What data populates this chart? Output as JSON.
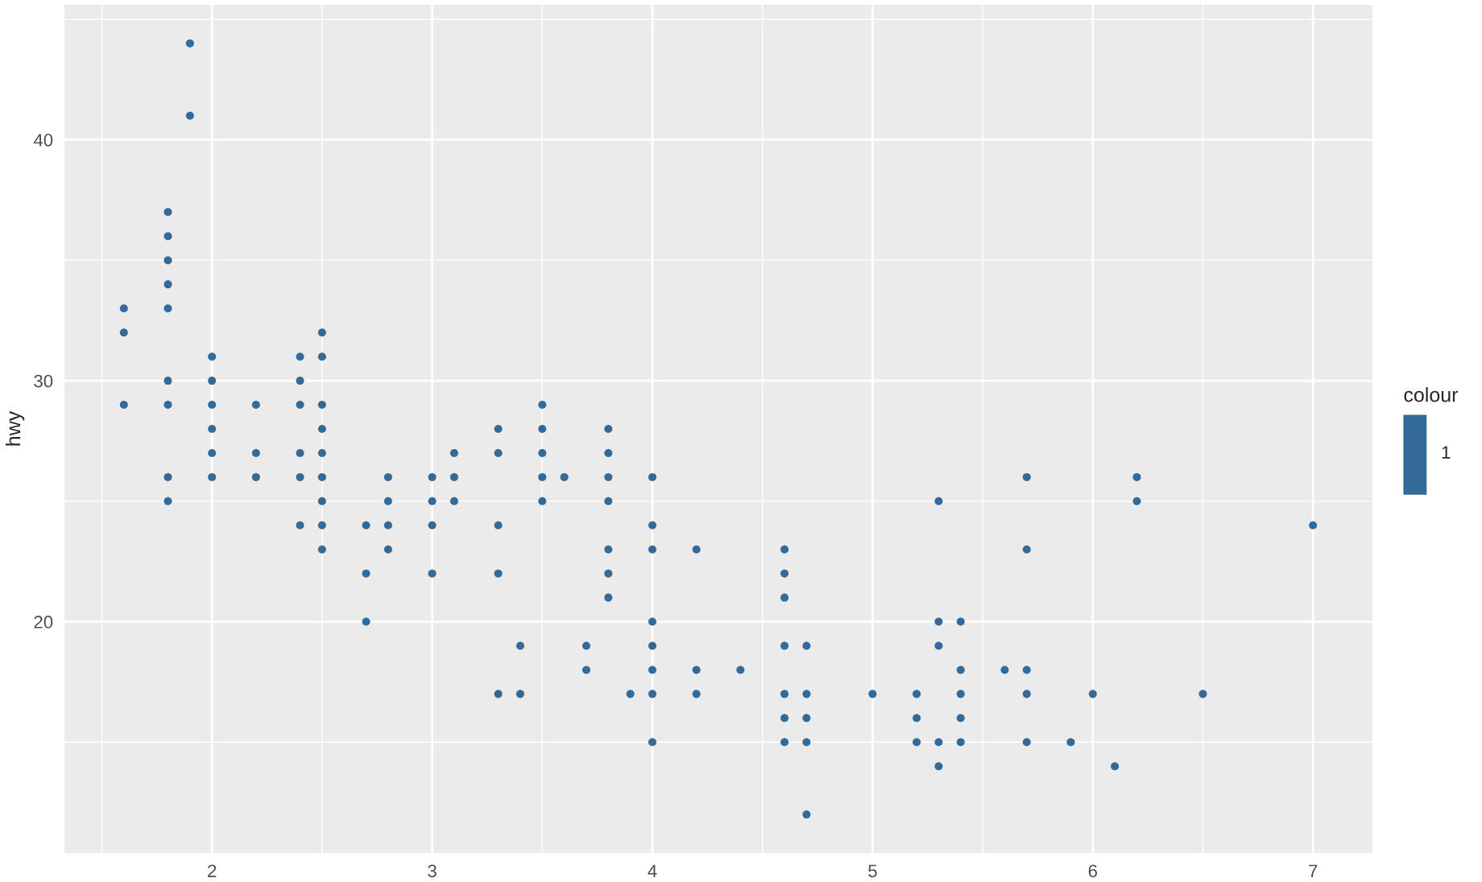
{
  "chart_data": {
    "type": "scatter",
    "ylabel": "hwy",
    "legend_title": "colour",
    "legend": "right",
    "x": [
      1.6,
      1.6,
      1.6,
      1.8,
      1.8,
      1.8,
      1.8,
      1.8,
      1.8,
      1.8,
      1.8,
      1.8,
      1.9,
      1.9,
      2.0,
      2.0,
      2.0,
      2.0,
      2.0,
      2.0,
      2.2,
      2.2,
      2.2,
      2.4,
      2.4,
      2.4,
      2.4,
      2.4,
      2.4,
      2.5,
      2.5,
      2.5,
      2.5,
      2.5,
      2.5,
      2.5,
      2.5,
      2.5,
      2.7,
      2.7,
      2.7,
      2.8,
      2.8,
      2.8,
      2.8,
      3.0,
      3.0,
      3.0,
      3.0,
      3.1,
      3.1,
      3.1,
      3.3,
      3.3,
      3.3,
      3.3,
      3.3,
      3.4,
      3.4,
      3.5,
      3.5,
      3.5,
      3.5,
      3.5,
      3.6,
      3.7,
      3.7,
      3.8,
      3.8,
      3.8,
      3.8,
      3.8,
      3.8,
      3.8,
      3.9,
      4.0,
      4.0,
      4.0,
      4.0,
      4.0,
      4.0,
      4.0,
      4.0,
      4.2,
      4.2,
      4.2,
      4.4,
      4.6,
      4.6,
      4.6,
      4.6,
      4.6,
      4.6,
      4.6,
      4.7,
      4.7,
      4.7,
      4.7,
      4.7,
      5.0,
      5.2,
      5.2,
      5.2,
      5.3,
      5.3,
      5.3,
      5.3,
      5.3,
      5.4,
      5.4,
      5.4,
      5.4,
      5.4,
      5.6,
      5.7,
      5.7,
      5.7,
      5.7,
      5.7,
      5.9,
      6.0,
      6.1,
      6.2,
      6.2,
      6.5,
      7.0
    ],
    "series": [
      {
        "name": "1",
        "color": "#336a98",
        "values": [
          33,
          32,
          29,
          37,
          36,
          35,
          34,
          33,
          30,
          29,
          26,
          25,
          44,
          41,
          31,
          30,
          29,
          28,
          27,
          26,
          29,
          27,
          26,
          31,
          30,
          29,
          27,
          26,
          24,
          32,
          31,
          29,
          28,
          27,
          26,
          25,
          24,
          23,
          24,
          22,
          20,
          26,
          25,
          24,
          23,
          26,
          25,
          24,
          22,
          27,
          26,
          25,
          28,
          27,
          24,
          22,
          17,
          19,
          17,
          29,
          28,
          27,
          26,
          25,
          26,
          19,
          18,
          28,
          27,
          26,
          25,
          23,
          22,
          21,
          17,
          26,
          24,
          23,
          20,
          19,
          18,
          17,
          15,
          23,
          18,
          17,
          18,
          23,
          22,
          21,
          19,
          17,
          16,
          15,
          19,
          17,
          16,
          15,
          12,
          17,
          17,
          16,
          15,
          25,
          20,
          19,
          15,
          14,
          20,
          18,
          17,
          16,
          15,
          18,
          26,
          23,
          18,
          17,
          15,
          15,
          17,
          14,
          26,
          25,
          17,
          24
        ]
      }
    ],
    "xlim": [
      1.33,
      7.27
    ],
    "ylim": [
      10.4,
      45.6
    ],
    "xticks": [
      2,
      3,
      4,
      5,
      6,
      7
    ],
    "yticks": [
      20,
      30,
      40
    ],
    "grid": true,
    "marker": "circle"
  }
}
